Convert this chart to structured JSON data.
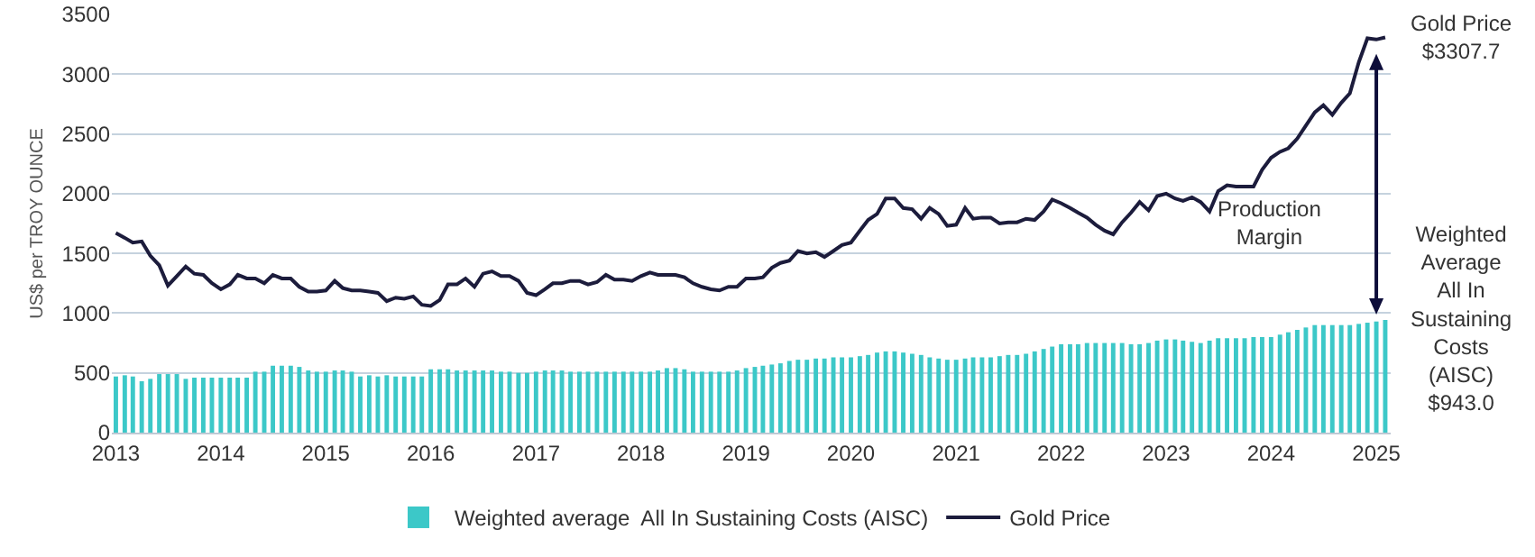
{
  "chart_data": {
    "type": "bar",
    "ylabel": "US$ per TROY OUNCE",
    "x": [
      "2013-01",
      "2013-02",
      "2013-03",
      "2013-04",
      "2013-05",
      "2013-06",
      "2013-07",
      "2013-08",
      "2013-09",
      "2013-10",
      "2013-11",
      "2013-12",
      "2014-01",
      "2014-02",
      "2014-03",
      "2014-04",
      "2014-05",
      "2014-06",
      "2014-07",
      "2014-08",
      "2014-09",
      "2014-10",
      "2014-11",
      "2014-12",
      "2015-01",
      "2015-02",
      "2015-03",
      "2015-04",
      "2015-05",
      "2015-06",
      "2015-07",
      "2015-08",
      "2015-09",
      "2015-10",
      "2015-11",
      "2015-12",
      "2016-01",
      "2016-02",
      "2016-03",
      "2016-04",
      "2016-05",
      "2016-06",
      "2016-07",
      "2016-08",
      "2016-09",
      "2016-10",
      "2016-11",
      "2016-12",
      "2017-01",
      "2017-02",
      "2017-03",
      "2017-04",
      "2017-05",
      "2017-06",
      "2017-07",
      "2017-08",
      "2017-09",
      "2017-10",
      "2017-11",
      "2017-12",
      "2018-01",
      "2018-02",
      "2018-03",
      "2018-04",
      "2018-05",
      "2018-06",
      "2018-07",
      "2018-08",
      "2018-09",
      "2018-10",
      "2018-11",
      "2018-12",
      "2019-01",
      "2019-02",
      "2019-03",
      "2019-04",
      "2019-05",
      "2019-06",
      "2019-07",
      "2019-08",
      "2019-09",
      "2019-10",
      "2019-11",
      "2019-12",
      "2020-01",
      "2020-02",
      "2020-03",
      "2020-04",
      "2020-05",
      "2020-06",
      "2020-07",
      "2020-08",
      "2020-09",
      "2020-10",
      "2020-11",
      "2020-12",
      "2021-01",
      "2021-02",
      "2021-03",
      "2021-04",
      "2021-05",
      "2021-06",
      "2021-07",
      "2021-08",
      "2021-09",
      "2021-10",
      "2021-11",
      "2021-12",
      "2022-01",
      "2022-02",
      "2022-03",
      "2022-04",
      "2022-05",
      "2022-06",
      "2022-07",
      "2022-08",
      "2022-09",
      "2022-10",
      "2022-11",
      "2022-12",
      "2023-01",
      "2023-02",
      "2023-03",
      "2023-04",
      "2023-05",
      "2023-06",
      "2023-07",
      "2023-08",
      "2023-09",
      "2023-10",
      "2023-11",
      "2023-12",
      "2024-01",
      "2024-02",
      "2024-03",
      "2024-04",
      "2024-05",
      "2024-06",
      "2024-07",
      "2024-08",
      "2024-09",
      "2024-10",
      "2024-11",
      "2024-12",
      "2025-01",
      "2025-02"
    ],
    "series": [
      {
        "name": "Weighted average  All In Sustaining Costs (AISC)",
        "color": "#3cc8c8",
        "values": [
          470,
          480,
          470,
          430,
          450,
          490,
          490,
          490,
          450,
          460,
          460,
          460,
          460,
          460,
          460,
          460,
          510,
          510,
          560,
          560,
          560,
          550,
          520,
          510,
          510,
          520,
          520,
          510,
          470,
          480,
          470,
          480,
          470,
          470,
          470,
          470,
          530,
          530,
          530,
          520,
          520,
          520,
          520,
          520,
          510,
          510,
          500,
          500,
          510,
          520,
          520,
          520,
          510,
          510,
          510,
          510,
          510,
          510,
          510,
          510,
          510,
          510,
          520,
          540,
          540,
          530,
          510,
          510,
          510,
          510,
          510,
          520,
          540,
          550,
          560,
          570,
          580,
          600,
          610,
          610,
          620,
          620,
          630,
          630,
          630,
          640,
          650,
          670,
          680,
          680,
          670,
          660,
          650,
          630,
          620,
          610,
          610,
          620,
          630,
          630,
          630,
          640,
          650,
          650,
          660,
          680,
          700,
          720,
          740,
          740,
          740,
          750,
          750,
          750,
          750,
          750,
          740,
          740,
          750,
          770,
          780,
          780,
          770,
          760,
          750,
          770,
          790,
          790,
          790,
          790,
          800,
          800,
          800,
          820,
          840,
          860,
          880,
          900,
          900,
          900,
          900,
          900,
          910,
          920,
          930,
          943.0
        ]
      },
      {
        "name": "Gold Price",
        "type": "line",
        "color": "#1c1c3c",
        "values": [
          1670,
          1630,
          1590,
          1600,
          1480,
          1400,
          1230,
          1310,
          1390,
          1330,
          1320,
          1250,
          1200,
          1240,
          1320,
          1290,
          1290,
          1250,
          1320,
          1290,
          1290,
          1220,
          1180,
          1180,
          1190,
          1270,
          1210,
          1190,
          1190,
          1180,
          1170,
          1100,
          1130,
          1120,
          1140,
          1070,
          1060,
          1110,
          1240,
          1240,
          1290,
          1220,
          1330,
          1350,
          1310,
          1310,
          1270,
          1170,
          1150,
          1200,
          1250,
          1250,
          1270,
          1270,
          1240,
          1260,
          1320,
          1280,
          1280,
          1270,
          1310,
          1340,
          1320,
          1320,
          1320,
          1300,
          1250,
          1220,
          1200,
          1190,
          1220,
          1220,
          1290,
          1290,
          1300,
          1380,
          1420,
          1440,
          1520,
          1500,
          1510,
          1470,
          1520,
          1570,
          1590,
          1690,
          1780,
          1830,
          1960,
          1960,
          1880,
          1870,
          1790,
          1880,
          1830,
          1730,
          1740,
          1880,
          1790,
          1800,
          1800,
          1750,
          1760,
          1760,
          1790,
          1780,
          1850,
          1950,
          1920,
          1880,
          1840,
          1800,
          1740,
          1690,
          1660,
          1760,
          1840,
          1930,
          1860,
          1980,
          2000,
          1960,
          1940,
          1970,
          1930,
          1850,
          2020,
          2070,
          2060,
          2060,
          2060,
          2200,
          2300,
          2350,
          2380,
          2460,
          2570,
          2680,
          2740,
          2660,
          2760,
          2840,
          3100,
          3300,
          3290,
          3307.7
        ]
      }
    ],
    "xlim": [
      "2012-12-18",
      "2025-02-20"
    ],
    "xticks": [
      {
        "value": "2013",
        "label": "2013"
      },
      {
        "value": "2014",
        "label": "2014"
      },
      {
        "value": "2015",
        "label": "2015"
      },
      {
        "value": "2016",
        "label": "2016"
      },
      {
        "value": "2017",
        "label": "2017"
      },
      {
        "value": "2018",
        "label": "2018"
      },
      {
        "value": "2019",
        "label": "2019"
      },
      {
        "value": "2020",
        "label": "2020"
      },
      {
        "value": "2021",
        "label": "2021"
      },
      {
        "value": "2022",
        "label": "2022"
      },
      {
        "value": "2023",
        "label": "2023"
      },
      {
        "value": "2024",
        "label": "2024"
      },
      {
        "value": "2025",
        "label": "2025"
      }
    ],
    "ylim": [
      0,
      3500
    ],
    "yticks": [
      0,
      500,
      1000,
      1500,
      2000,
      2500,
      3000,
      3500
    ],
    "grid": "y",
    "legend": "bottom",
    "annotations": [
      {
        "text": "Gold Price\n$3307.7",
        "x": "2025-02",
        "y": 3307.7
      },
      {
        "text": "Weighted\nAverage\nAll In\nSustaining\nCosts\n(AISC)\n$943.0",
        "x": "2025-02",
        "y": 943.0
      },
      "Production\nMargin"
    ]
  }
}
